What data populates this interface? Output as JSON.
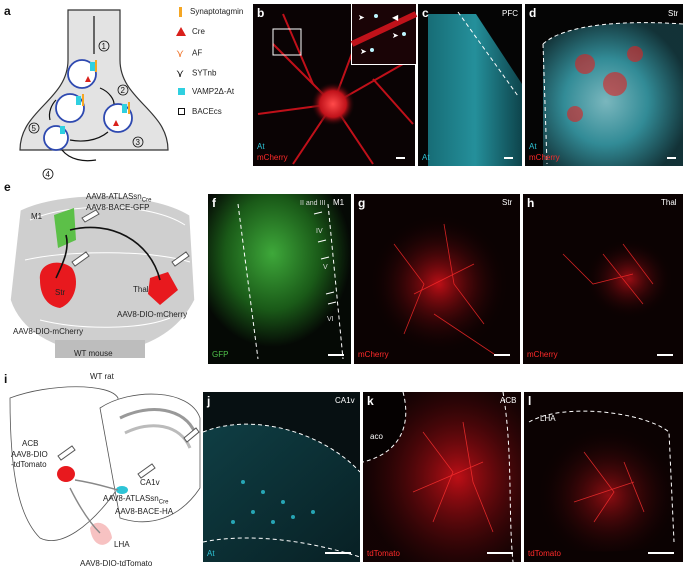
{
  "panels": {
    "a": {
      "label": "a",
      "legend": [
        {
          "name": "Synaptotagmin",
          "color": "#f5a623",
          "icon": "bar-icon"
        },
        {
          "name": "Cre",
          "color": "#d9201b",
          "icon": "triangle-icon"
        },
        {
          "name": "AF",
          "color": "#f07830",
          "icon": "fork-icon"
        },
        {
          "name": "SYTnb",
          "color": "#111111",
          "icon": "fork-dark-icon"
        },
        {
          "name": "VAMP2Δ-At",
          "color": "#2fd0e0",
          "icon": "square-icon"
        },
        {
          "name": "BACEcs",
          "color": "#111111",
          "icon": "hollow-square-icon"
        }
      ],
      "steps": [
        "1",
        "2",
        "3",
        "4",
        "5"
      ]
    },
    "b": {
      "label": "b",
      "ch1": "At",
      "ch2": "mCherry"
    },
    "c": {
      "label": "c",
      "region": "PFC",
      "ch1": "At"
    },
    "d": {
      "label": "d",
      "region": "Str",
      "ch1": "At",
      "ch2": "mCherry"
    },
    "e": {
      "label": "e",
      "m1": "M1",
      "virus1": "AAV8-ATLASsn",
      "virus1_sub": "Cre",
      "virus2": "AAV8-BACE-GFP",
      "str": "Str",
      "thal": "Thal",
      "virus3": "AAV8-DIO-mCherry",
      "virus4": "AAV8-DIO-mCherry",
      "animal": "WT mouse"
    },
    "f": {
      "label": "f",
      "region": "M1",
      "layers": [
        "II and III",
        "IV",
        "V",
        "VI"
      ],
      "ch1": "GFP"
    },
    "g": {
      "label": "g",
      "region": "Str",
      "ch1": "mCherry"
    },
    "h": {
      "label": "h",
      "region": "Thal",
      "ch1": "mCherry"
    },
    "i": {
      "label": "i",
      "animal": "WT rat",
      "acb": "ACB",
      "virus1a": "AAV8-DIO",
      "virus1b": "-tdTomato",
      "ca1v": "CA1v",
      "virus2": "AAV8-ATLASsn",
      "virus2_sub": "Cre",
      "virus3": "AAV8-BACE-HA",
      "lha": "LHA",
      "virus4": "AAV8-DIO-tdTomato"
    },
    "j": {
      "label": "j",
      "region": "CA1v",
      "ch1": "At"
    },
    "k": {
      "label": "k",
      "region": "ACB",
      "sub": "aco",
      "ch1": "tdTomato"
    },
    "l": {
      "label": "l",
      "region": "LHA",
      "ch1": "tdTomato"
    }
  },
  "colors": {
    "cyan": "#2ec4d6",
    "red": "#ff2a2a",
    "green": "#4fc04a",
    "gray": "#cfcfcf",
    "darkgray": "#9a9a9a"
  }
}
